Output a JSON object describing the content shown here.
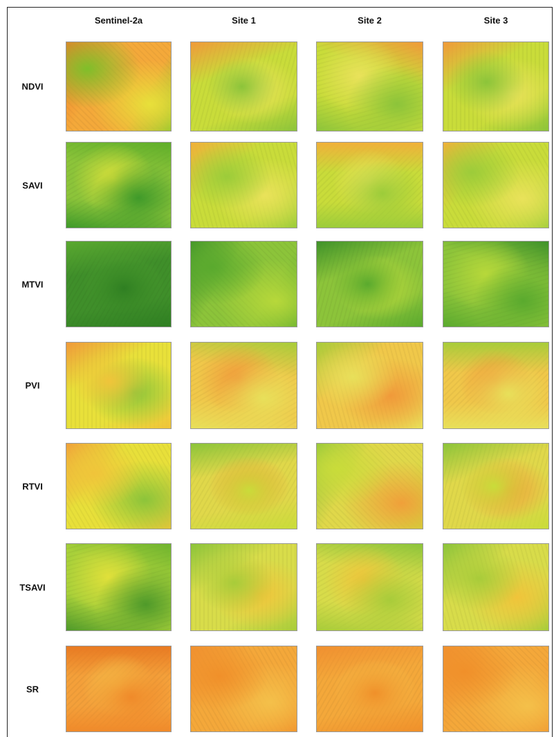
{
  "columns": [
    "Sentinel-2a",
    "Site 1",
    "Site 2",
    "Site 3"
  ],
  "rows": [
    "NDVI",
    "SAVI",
    "MTVI",
    "PVI",
    "RTVI",
    "TSAVI",
    "SR"
  ]
}
